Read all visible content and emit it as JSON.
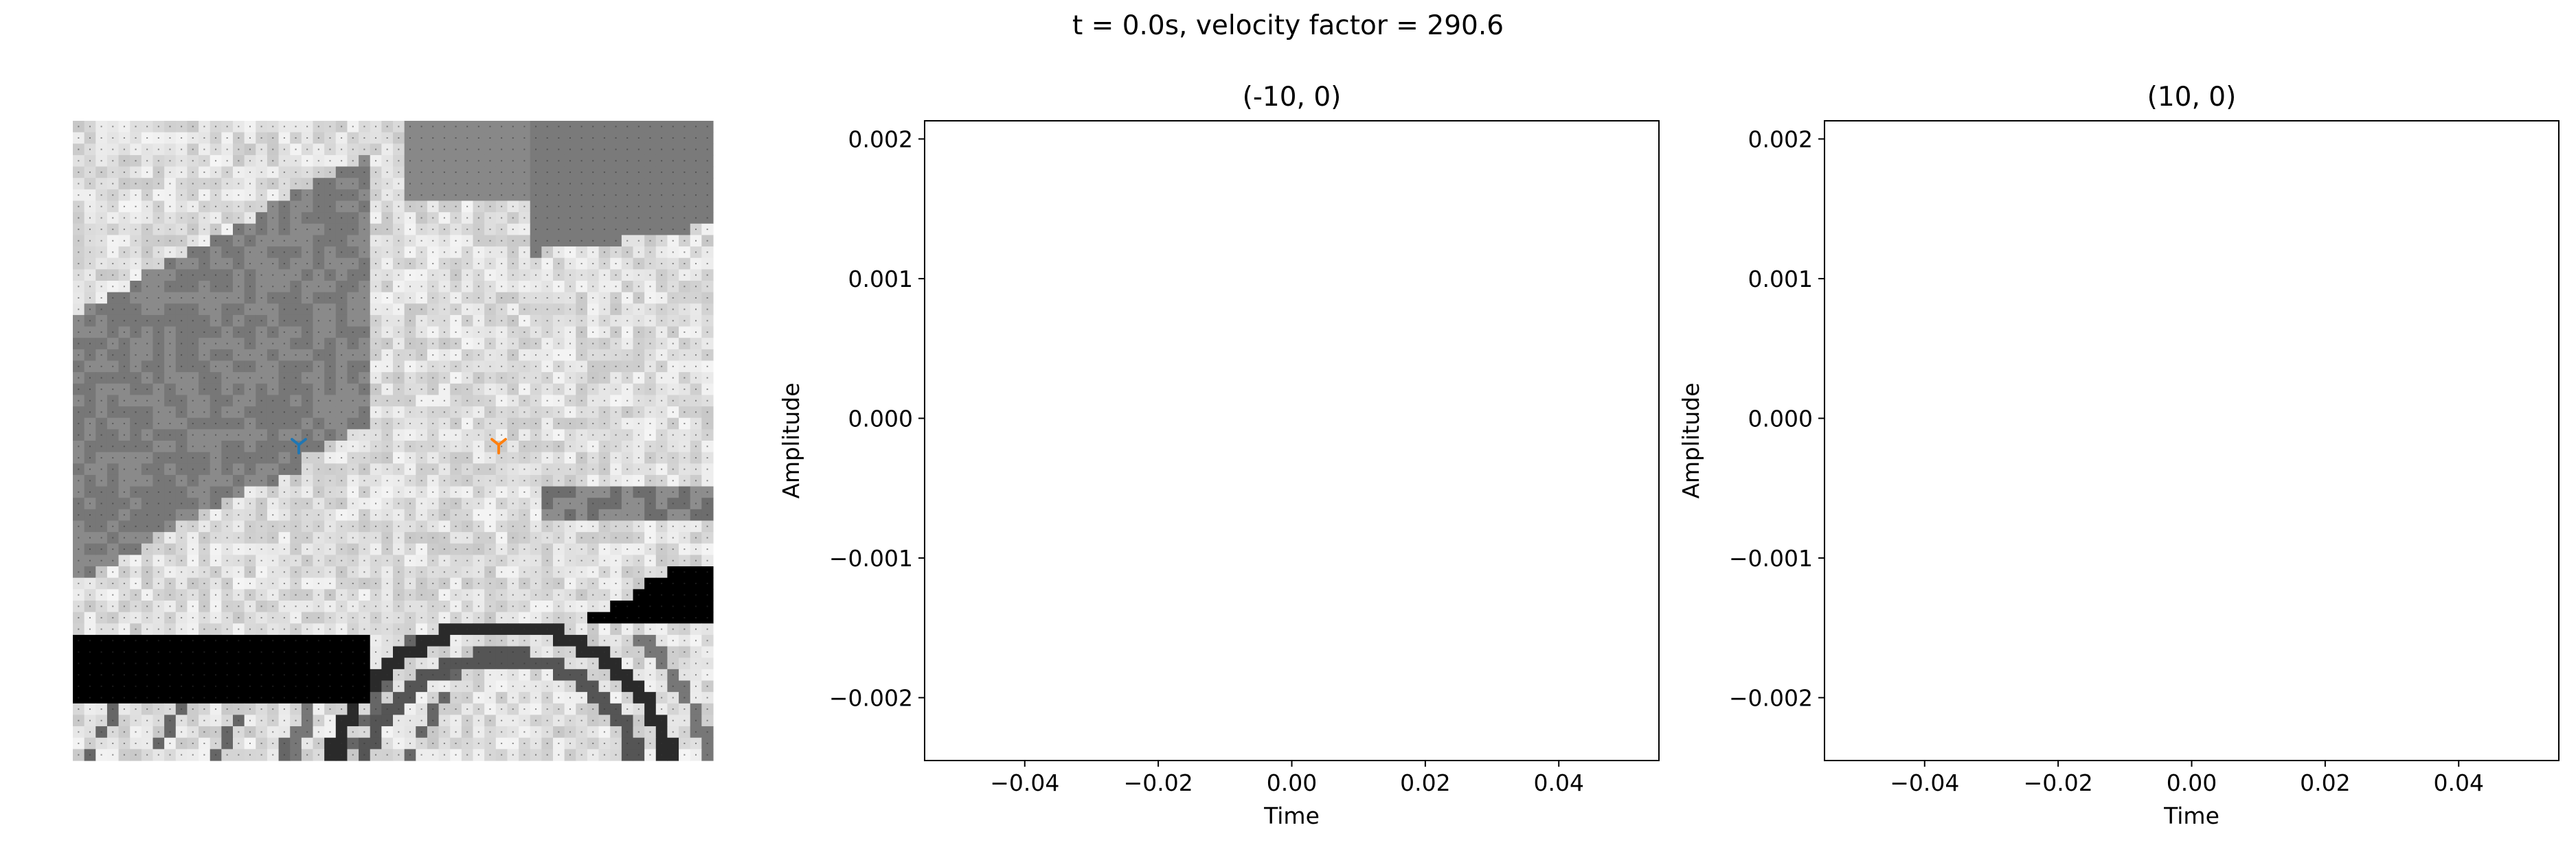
{
  "figure": {
    "suptitle": "t = 0.0s, velocity factor = 290.6"
  },
  "map_panel": {
    "description_colormap": "grayscale",
    "markers": [
      {
        "name": "receiver-a",
        "color": "#1f77b4",
        "symbol": "tri_down"
      },
      {
        "name": "receiver-b",
        "color": "#ff7f0e",
        "symbol": "tri_down"
      }
    ]
  },
  "chart_data": [
    {
      "type": "line",
      "title": "(-10, 0)",
      "xlabel": "Time",
      "ylabel": "Amplitude",
      "xlim": [
        -0.055,
        0.055
      ],
      "ylim": [
        -0.00245,
        0.00213
      ],
      "xticks": [
        -0.04,
        -0.02,
        0.0,
        0.02,
        0.04
      ],
      "xtick_labels": [
        "−0.04",
        "−0.02",
        "0.00",
        "0.02",
        "0.04"
      ],
      "yticks": [
        0.002,
        0.001,
        0.0,
        -0.001,
        -0.002
      ],
      "ytick_labels": [
        "0.002",
        "0.001",
        "0.000",
        "−0.001",
        "−0.002"
      ],
      "series": [],
      "grid": false
    },
    {
      "type": "line",
      "title": "(10, 0)",
      "xlabel": "Time",
      "ylabel": "Amplitude",
      "xlim": [
        -0.055,
        0.055
      ],
      "ylim": [
        -0.00245,
        0.00213
      ],
      "xticks": [
        -0.04,
        -0.02,
        0.0,
        0.02,
        0.04
      ],
      "xtick_labels": [
        "−0.04",
        "−0.02",
        "0.00",
        "0.02",
        "0.04"
      ],
      "yticks": [
        0.002,
        0.001,
        0.0,
        -0.001,
        -0.002
      ],
      "ytick_labels": [
        "0.002",
        "0.001",
        "0.000",
        "−0.001",
        "−0.002"
      ],
      "series": [],
      "grid": false
    }
  ]
}
